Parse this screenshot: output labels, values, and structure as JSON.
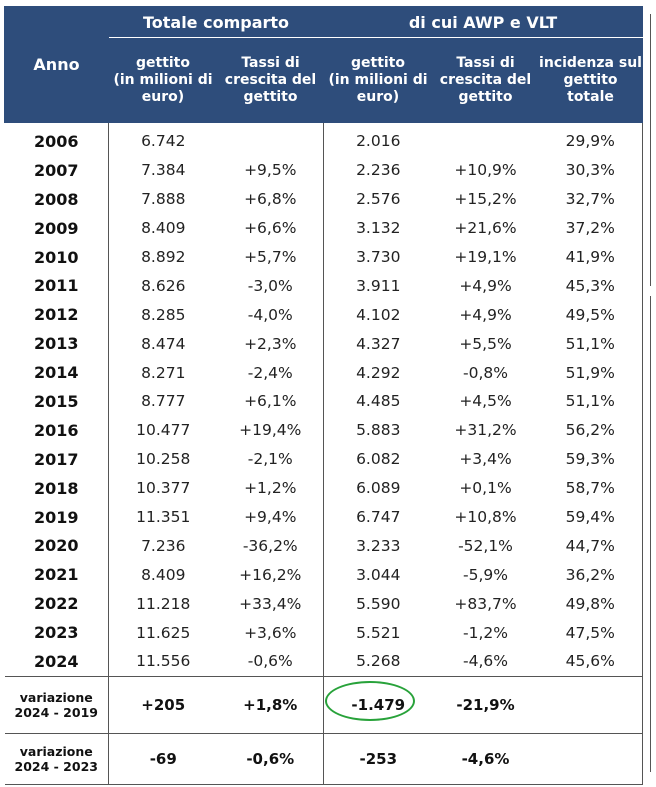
{
  "header": {
    "anno": "Anno",
    "group_total": "Totale comparto",
    "group_awp": "di cui AWP e VLT",
    "cols": [
      {
        "line1": "gettito",
        "line2": "(in milioni di",
        "line3": "euro)"
      },
      {
        "line1": "Tassi di",
        "line2": "crescita del",
        "line3": "gettito"
      },
      {
        "line1": "gettito",
        "line2": "(in milioni di",
        "line3": "euro)"
      },
      {
        "line1": "Tassi di",
        "line2": "crescita del",
        "line3": "gettito"
      },
      {
        "line1": "incidenza sul",
        "line2": "gettito totale",
        "line3": ""
      }
    ]
  },
  "rows": [
    {
      "anno": "2006",
      "gettito_tot": "6.742",
      "tasso_tot": "",
      "gettito_awp": "2.016",
      "tasso_awp": "",
      "incidenza": "29,9%"
    },
    {
      "anno": "2007",
      "gettito_tot": "7.384",
      "tasso_tot": "+9,5%",
      "gettito_awp": "2.236",
      "tasso_awp": "+10,9%",
      "incidenza": "30,3%"
    },
    {
      "anno": "2008",
      "gettito_tot": "7.888",
      "tasso_tot": "+6,8%",
      "gettito_awp": "2.576",
      "tasso_awp": "+15,2%",
      "incidenza": "32,7%"
    },
    {
      "anno": "2009",
      "gettito_tot": "8.409",
      "tasso_tot": "+6,6%",
      "gettito_awp": "3.132",
      "tasso_awp": "+21,6%",
      "incidenza": "37,2%"
    },
    {
      "anno": "2010",
      "gettito_tot": "8.892",
      "tasso_tot": "+5,7%",
      "gettito_awp": "3.730",
      "tasso_awp": "+19,1%",
      "incidenza": "41,9%"
    },
    {
      "anno": "2011",
      "gettito_tot": "8.626",
      "tasso_tot": "-3,0%",
      "gettito_awp": "3.911",
      "tasso_awp": "+4,9%",
      "incidenza": "45,3%"
    },
    {
      "anno": "2012",
      "gettito_tot": "8.285",
      "tasso_tot": "-4,0%",
      "gettito_awp": "4.102",
      "tasso_awp": "+4,9%",
      "incidenza": "49,5%"
    },
    {
      "anno": "2013",
      "gettito_tot": "8.474",
      "tasso_tot": "+2,3%",
      "gettito_awp": "4.327",
      "tasso_awp": "+5,5%",
      "incidenza": "51,1%"
    },
    {
      "anno": "2014",
      "gettito_tot": "8.271",
      "tasso_tot": "-2,4%",
      "gettito_awp": "4.292",
      "tasso_awp": "-0,8%",
      "incidenza": "51,9%"
    },
    {
      "anno": "2015",
      "gettito_tot": "8.777",
      "tasso_tot": "+6,1%",
      "gettito_awp": "4.485",
      "tasso_awp": "+4,5%",
      "incidenza": "51,1%"
    },
    {
      "anno": "2016",
      "gettito_tot": "10.477",
      "tasso_tot": "+19,4%",
      "gettito_awp": "5.883",
      "tasso_awp": "+31,2%",
      "incidenza": "56,2%"
    },
    {
      "anno": "2017",
      "gettito_tot": "10.258",
      "tasso_tot": "-2,1%",
      "gettito_awp": "6.082",
      "tasso_awp": "+3,4%",
      "incidenza": "59,3%"
    },
    {
      "anno": "2018",
      "gettito_tot": "10.377",
      "tasso_tot": "+1,2%",
      "gettito_awp": "6.089",
      "tasso_awp": "+0,1%",
      "incidenza": "58,7%"
    },
    {
      "anno": "2019",
      "gettito_tot": "11.351",
      "tasso_tot": "+9,4%",
      "gettito_awp": "6.747",
      "tasso_awp": "+10,8%",
      "incidenza": "59,4%"
    },
    {
      "anno": "2020",
      "gettito_tot": "7.236",
      "tasso_tot": "-36,2%",
      "gettito_awp": "3.233",
      "tasso_awp": "-52,1%",
      "incidenza": "44,7%"
    },
    {
      "anno": "2021",
      "gettito_tot": "8.409",
      "tasso_tot": "+16,2%",
      "gettito_awp": "3.044",
      "tasso_awp": "-5,9%",
      "incidenza": "36,2%"
    },
    {
      "anno": "2022",
      "gettito_tot": "11.218",
      "tasso_tot": "+33,4%",
      "gettito_awp": "5.590",
      "tasso_awp": "+83,7%",
      "incidenza": "49,8%"
    },
    {
      "anno": "2023",
      "gettito_tot": "11.625",
      "tasso_tot": "+3,6%",
      "gettito_awp": "5.521",
      "tasso_awp": "-1,2%",
      "incidenza": "47,5%"
    },
    {
      "anno": "2024",
      "gettito_tot": "11.556",
      "tasso_tot": "-0,6%",
      "gettito_awp": "5.268",
      "tasso_awp": "-4,6%",
      "incidenza": "45,6%"
    }
  ],
  "variations": [
    {
      "label1": "variazione",
      "label2": "2024 - 2019",
      "gettito_tot": "+205",
      "tasso_tot": "+1,8%",
      "gettito_awp": "-1.479",
      "tasso_awp": "-21,9%"
    },
    {
      "label1": "variazione",
      "label2": "2024 - 2023",
      "gettito_tot": "-69",
      "tasso_tot": "-0,6%",
      "gettito_awp": "-253",
      "tasso_awp": "-4,6%"
    }
  ],
  "colors": {
    "header_bg": "#2e4d7b",
    "highlight_circle": "#28a23a"
  }
}
